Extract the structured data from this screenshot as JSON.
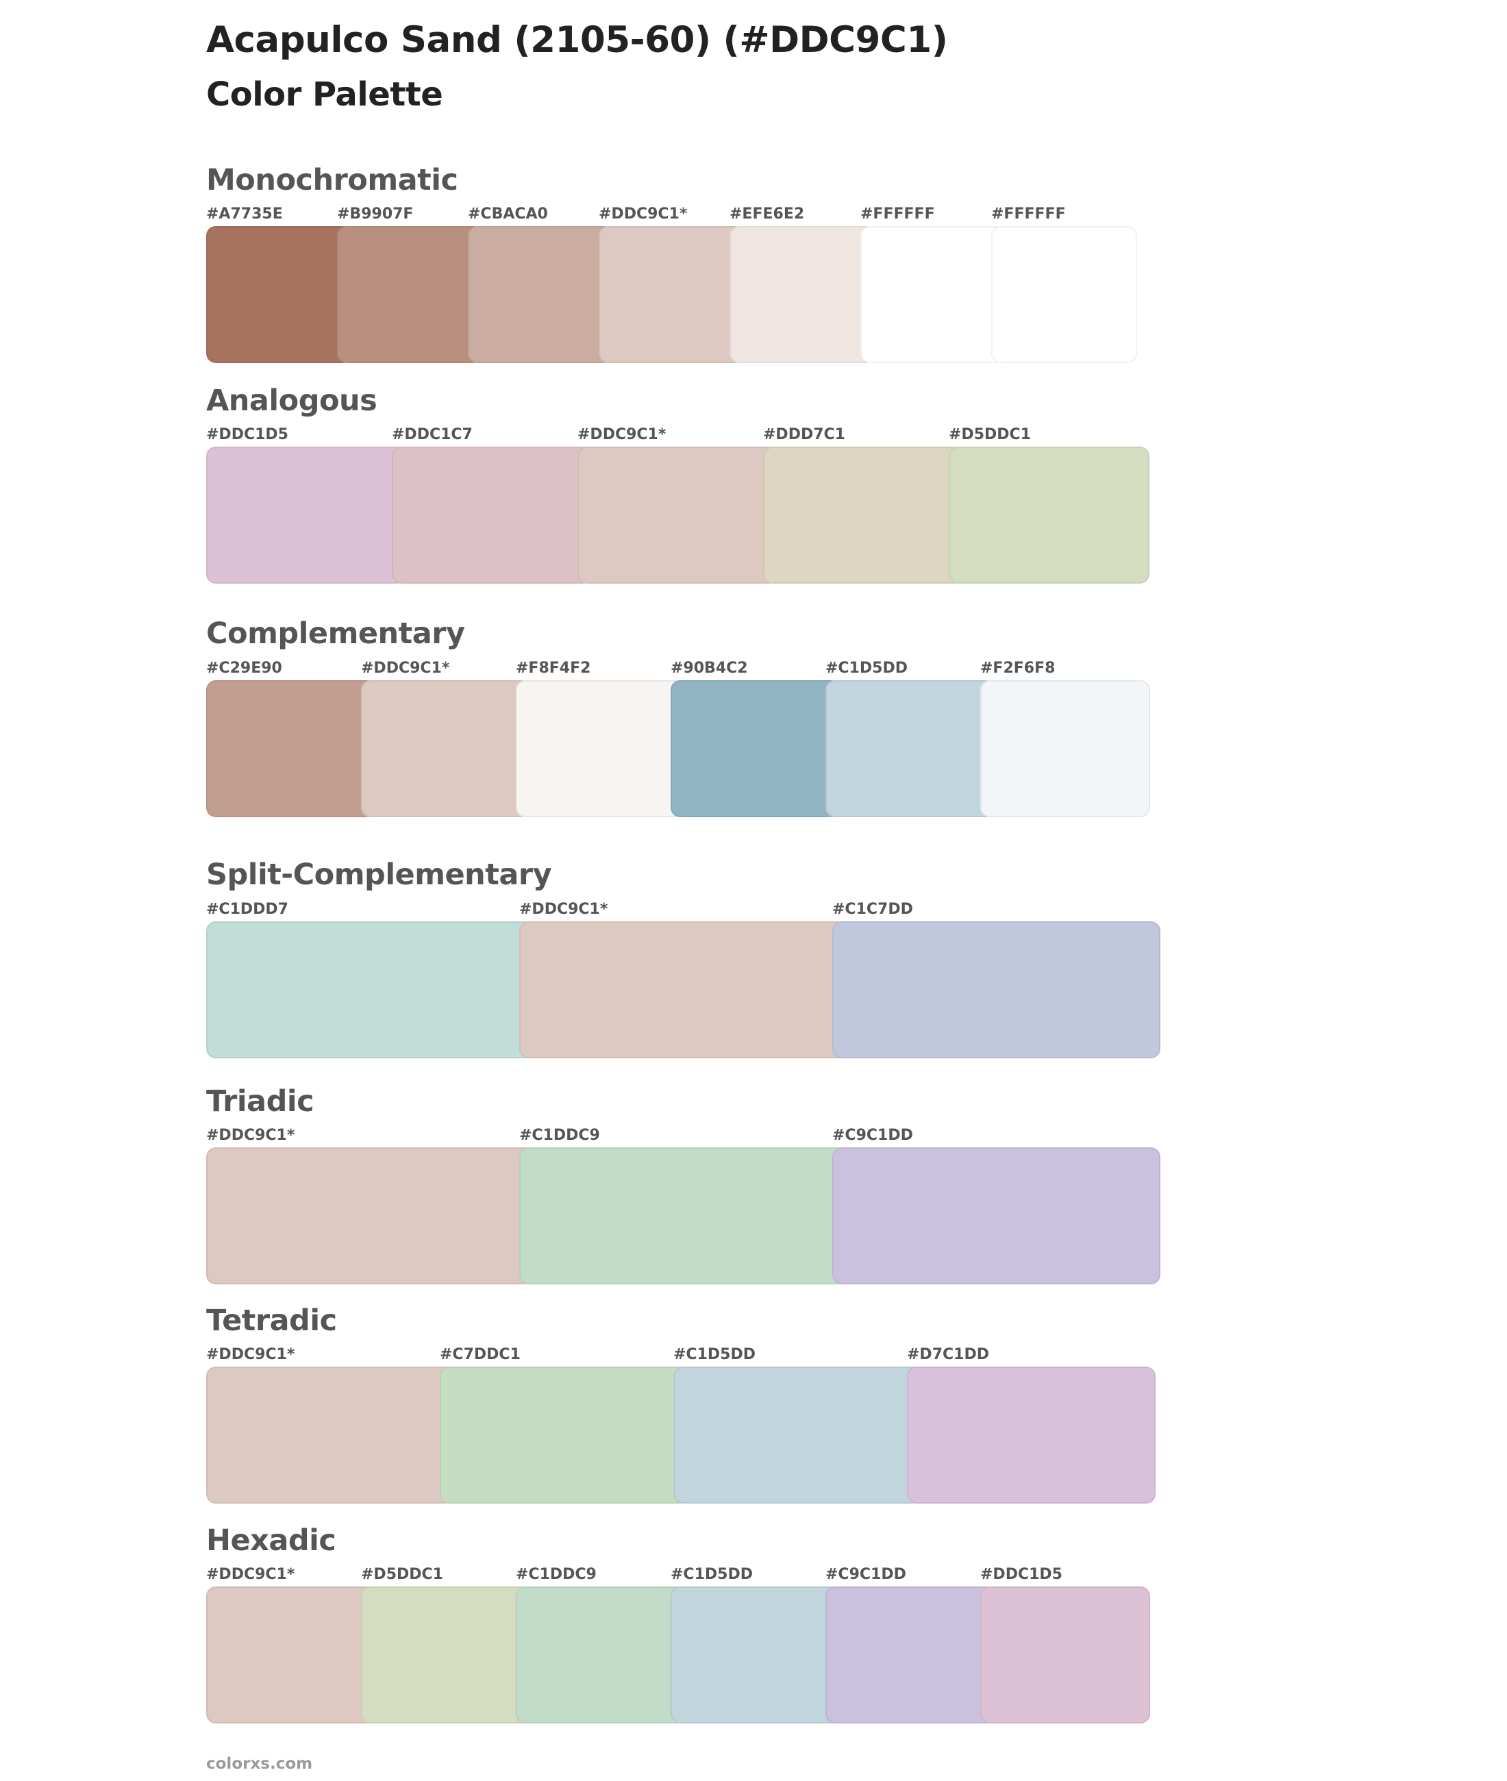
{
  "title": "Acapulco Sand (2105-60) (#DDC9C1)",
  "subtitle": "Color Palette",
  "footer": "colorxs.com",
  "sections": [
    {
      "name": "Monochromatic",
      "swatches": [
        {
          "label": "#A7735E",
          "color": "#A7735E"
        },
        {
          "label": "#B9907F",
          "color": "#B9907F"
        },
        {
          "label": "#CBACA0",
          "color": "#CBACA0"
        },
        {
          "label": "#DDC9C1*",
          "color": "#DDC9C1"
        },
        {
          "label": "#EFE6E2",
          "color": "#EFE6E2"
        },
        {
          "label": "#FFFFFF",
          "color": "#FFFFFF"
        },
        {
          "label": "#FFFFFF",
          "color": "#FFFFFF"
        }
      ]
    },
    {
      "name": "Analogous",
      "swatches": [
        {
          "label": "#DDC1D5",
          "color": "#DDC1D5"
        },
        {
          "label": "#DDC1C7",
          "color": "#DDC1C7"
        },
        {
          "label": "#DDC9C1*",
          "color": "#DDC9C1"
        },
        {
          "label": "#DDD7C1",
          "color": "#DDD7C1"
        },
        {
          "label": "#D5DDC1",
          "color": "#D5DDC1"
        }
      ]
    },
    {
      "name": "Complementary",
      "swatches": [
        {
          "label": "#C29E90",
          "color": "#C29E90"
        },
        {
          "label": "#DDC9C1*",
          "color": "#DDC9C1"
        },
        {
          "label": "#F8F4F2",
          "color": "#F8F4F2"
        },
        {
          "label": "#90B4C2",
          "color": "#90B4C2"
        },
        {
          "label": "#C1D5DD",
          "color": "#C1D5DD"
        },
        {
          "label": "#F2F6F8",
          "color": "#F2F6F8"
        }
      ]
    },
    {
      "name": "Split-Complementary",
      "swatches": [
        {
          "label": "#C1DDD7",
          "color": "#C1DDD7"
        },
        {
          "label": "#DDC9C1*",
          "color": "#DDC9C1"
        },
        {
          "label": "#C1C7DD",
          "color": "#C1C7DD"
        }
      ]
    },
    {
      "name": "Triadic",
      "swatches": [
        {
          "label": "#DDC9C1*",
          "color": "#DDC9C1"
        },
        {
          "label": "#C1DDC9",
          "color": "#C1DDC9"
        },
        {
          "label": "#C9C1DD",
          "color": "#C9C1DD"
        }
      ]
    },
    {
      "name": "Tetradic",
      "swatches": [
        {
          "label": "#DDC9C1*",
          "color": "#DDC9C1"
        },
        {
          "label": "#C7DDC1",
          "color": "#C7DDC1"
        },
        {
          "label": "#C1D5DD",
          "color": "#C1D5DD"
        },
        {
          "label": "#D7C1DD",
          "color": "#D7C1DD"
        }
      ]
    },
    {
      "name": "Hexadic",
      "swatches": [
        {
          "label": "#DDC9C1*",
          "color": "#DDC9C1"
        },
        {
          "label": "#D5DDC1",
          "color": "#D5DDC1"
        },
        {
          "label": "#C1DDC9",
          "color": "#C1DDC9"
        },
        {
          "label": "#C1D5DD",
          "color": "#C1D5DD"
        },
        {
          "label": "#C9C1DD",
          "color": "#C9C1DD"
        },
        {
          "label": "#DDC1D5",
          "color": "#DDC1D5"
        }
      ]
    }
  ]
}
